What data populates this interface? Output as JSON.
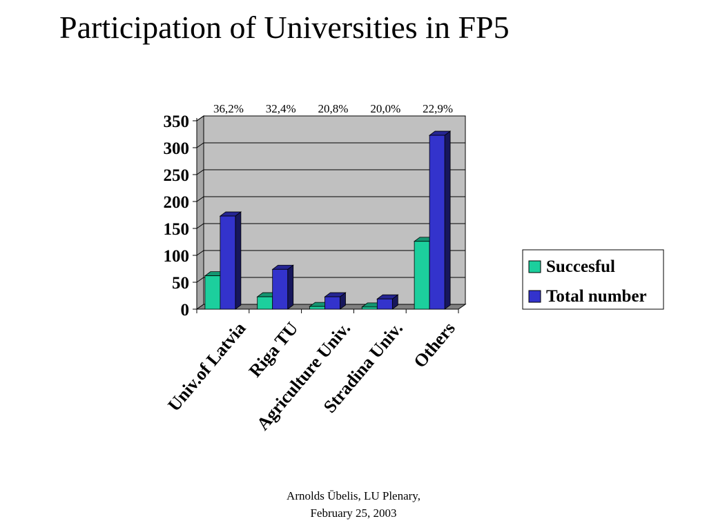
{
  "slide": {
    "title": "Participation of Universities in FP5",
    "footer_line1": "Arnolds Ūbelis,   LU Plenary,",
    "footer_line2": "February 25, 2003"
  },
  "chart_data": {
    "type": "bar",
    "style": "3d-clustered-column",
    "categories": [
      "Univ.of Latvia",
      "Riga TU",
      "Agriculture Univ.",
      "Stradina Univ.",
      "Others"
    ],
    "series": [
      {
        "name": "Succesful",
        "values": [
          62,
          23,
          5,
          4,
          126
        ],
        "color": "#1ccf9d"
      },
      {
        "name": "Total number",
        "values": [
          173,
          74,
          23,
          19,
          323
        ],
        "color": "#3333cc"
      }
    ],
    "top_labels": [
      "36,2%",
      "32,4%",
      "20,8%",
      "20,0%",
      "22,9%"
    ],
    "yticks": [
      0,
      50,
      100,
      150,
      200,
      250,
      300,
      350
    ],
    "ylim": [
      0,
      350
    ],
    "plot_background": "#c0c0c0",
    "grid": true,
    "legend_position": "right"
  }
}
